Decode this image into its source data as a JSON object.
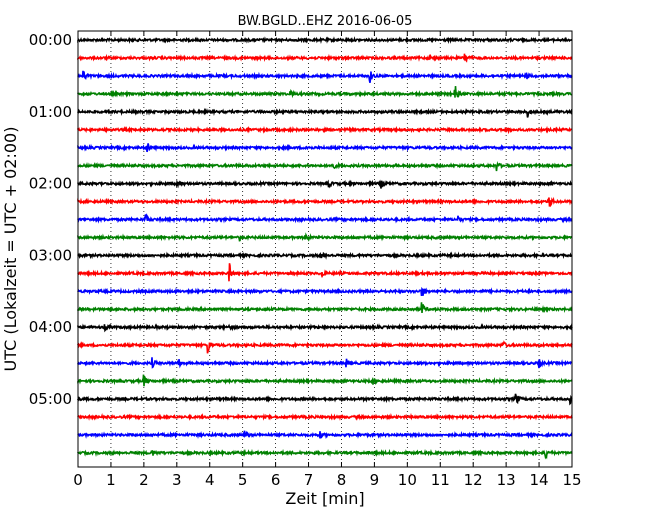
{
  "chart_data": {
    "type": "line",
    "title": "BW.BGLD..EHZ 2016-06-05",
    "xlabel": "Zeit  [min]",
    "ylabel": "UTC (Lokalzeit = UTC + 02:00)",
    "xlim": [
      0,
      15
    ],
    "x_ticks": [
      "0",
      "1",
      "2",
      "3",
      "4",
      "5",
      "6",
      "7",
      "8",
      "9",
      "10",
      "11",
      "12",
      "13",
      "14",
      "15"
    ],
    "y_ticks": [
      "00:00",
      "01:00",
      "02:00",
      "03:00",
      "04:00",
      "05:00"
    ],
    "grid": "vertical dotted",
    "colors": [
      "#000000",
      "#ff0000",
      "#0000ff",
      "#008000"
    ],
    "series": [
      {
        "row": 0,
        "color": "#000000",
        "events": []
      },
      {
        "row": 1,
        "color": "#ff0000",
        "events": [
          {
            "x": 11.75,
            "amp": 7
          },
          {
            "x": 10.7,
            "amp": 3
          }
        ]
      },
      {
        "row": 2,
        "color": "#0000ff",
        "events": [
          {
            "x": 0.15,
            "amp": 6
          },
          {
            "x": 8.85,
            "amp": 8
          },
          {
            "x": 13.6,
            "amp": 4
          }
        ]
      },
      {
        "row": 3,
        "color": "#008000",
        "events": [
          {
            "x": 6.45,
            "amp": 4
          },
          {
            "x": 11.45,
            "amp": 9
          }
        ]
      },
      {
        "row": 4,
        "color": "#000000",
        "events": [
          {
            "x": 13.65,
            "amp": 5
          }
        ]
      },
      {
        "row": 5,
        "color": "#ff0000",
        "events": [
          {
            "x": 13.0,
            "amp": 3
          }
        ]
      },
      {
        "row": 6,
        "color": "#0000ff",
        "events": [
          {
            "x": 2.1,
            "amp": 7
          },
          {
            "x": 6.9,
            "amp": 3
          }
        ]
      },
      {
        "row": 7,
        "color": "#008000",
        "events": [
          {
            "x": 7.7,
            "amp": 6
          },
          {
            "x": 12.7,
            "amp": 6
          }
        ]
      },
      {
        "row": 8,
        "color": "#000000",
        "events": [
          {
            "x": 7.6,
            "amp": 4
          },
          {
            "x": 9.2,
            "amp": 4
          },
          {
            "x": 3.0,
            "amp": 3
          }
        ]
      },
      {
        "row": 9,
        "color": "#ff0000",
        "events": [
          {
            "x": 14.3,
            "amp": 7
          }
        ]
      },
      {
        "row": 10,
        "color": "#0000ff",
        "events": [
          {
            "x": 2.05,
            "amp": 5
          },
          {
            "x": 11.55,
            "amp": 3
          }
        ]
      },
      {
        "row": 11,
        "color": "#008000",
        "events": [
          {
            "x": 6.9,
            "amp": 4
          },
          {
            "x": 4.9,
            "amp": 3
          }
        ]
      },
      {
        "row": 12,
        "color": "#000000",
        "events": [
          {
            "x": 7.4,
            "amp": 3
          }
        ]
      },
      {
        "row": 13,
        "color": "#ff0000",
        "events": [
          {
            "x": 4.6,
            "amp": 9
          },
          {
            "x": 7.4,
            "amp": 3
          }
        ]
      },
      {
        "row": 14,
        "color": "#0000ff",
        "events": [
          {
            "x": 10.45,
            "amp": 6
          }
        ]
      },
      {
        "row": 15,
        "color": "#008000",
        "events": [
          {
            "x": 10.45,
            "amp": 6
          }
        ]
      },
      {
        "row": 16,
        "color": "#000000",
        "events": [
          {
            "x": 0.8,
            "amp": 3
          },
          {
            "x": 4.6,
            "amp": 3
          }
        ]
      },
      {
        "row": 17,
        "color": "#ff0000",
        "events": [
          {
            "x": 3.95,
            "amp": 8
          },
          {
            "x": 12.9,
            "amp": 4
          }
        ]
      },
      {
        "row": 18,
        "color": "#0000ff",
        "events": [
          {
            "x": 2.25,
            "amp": 5
          },
          {
            "x": 3.05,
            "amp": 4
          },
          {
            "x": 8.15,
            "amp": 4
          },
          {
            "x": 14.0,
            "amp": 4
          }
        ]
      },
      {
        "row": 19,
        "color": "#008000",
        "events": [
          {
            "x": 2.0,
            "amp": 6
          },
          {
            "x": 8.95,
            "amp": 4
          }
        ]
      },
      {
        "row": 20,
        "color": "#000000",
        "events": [
          {
            "x": 13.3,
            "amp": 6
          },
          {
            "x": 14.95,
            "amp": 4
          }
        ]
      },
      {
        "row": 21,
        "color": "#ff0000",
        "events": []
      },
      {
        "row": 22,
        "color": "#0000ff",
        "events": [
          {
            "x": 5.05,
            "amp": 4
          },
          {
            "x": 7.35,
            "amp": 3
          }
        ]
      },
      {
        "row": 23,
        "color": "#008000",
        "events": [
          {
            "x": 2.25,
            "amp": 3
          },
          {
            "x": 14.2,
            "amp": 5
          }
        ]
      }
    ]
  }
}
